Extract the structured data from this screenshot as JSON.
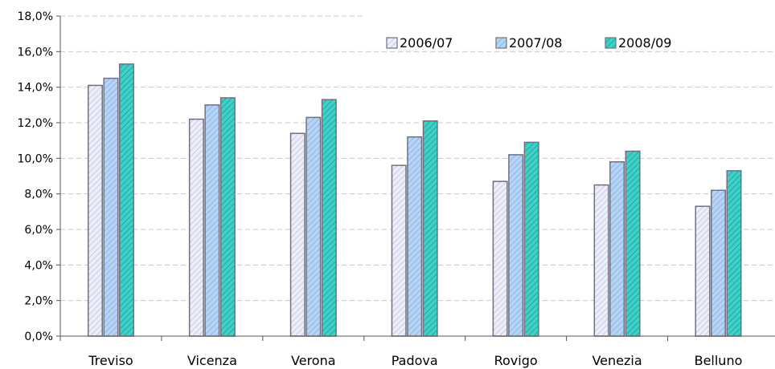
{
  "chart_data": {
    "type": "bar",
    "categories": [
      "Treviso",
      "Vicenza",
      "Verona",
      "Padova",
      "Rovigo",
      "Venezia",
      "Belluno"
    ],
    "series": [
      {
        "name": "2006/07",
        "values": [
          14.1,
          12.2,
          11.4,
          9.6,
          8.7,
          8.5,
          7.3
        ]
      },
      {
        "name": "2007/08",
        "values": [
          14.5,
          13.0,
          12.3,
          11.2,
          10.2,
          9.8,
          8.2
        ]
      },
      {
        "name": "2008/09",
        "values": [
          15.3,
          13.4,
          13.3,
          12.1,
          10.9,
          10.4,
          9.3
        ]
      }
    ],
    "ylim": [
      0,
      18
    ],
    "y_ticks": [
      "0,0%",
      "2,0%",
      "4,0%",
      "6,0%",
      "8,0%",
      "10,0%",
      "12,0%",
      "14,0%",
      "16,0%",
      "18,0%"
    ],
    "grid": true,
    "legend_position": "top-right",
    "colors": {
      "series_fill": [
        "#eeeef8",
        "#b8d4f4",
        "#40d0c8"
      ],
      "series_hatch": [
        "#c8c8ec",
        "#8cb4ec",
        "#20a8a0"
      ],
      "bar_stroke": "#707080",
      "axis": "#555555",
      "grid": "#c8c8c8"
    }
  }
}
